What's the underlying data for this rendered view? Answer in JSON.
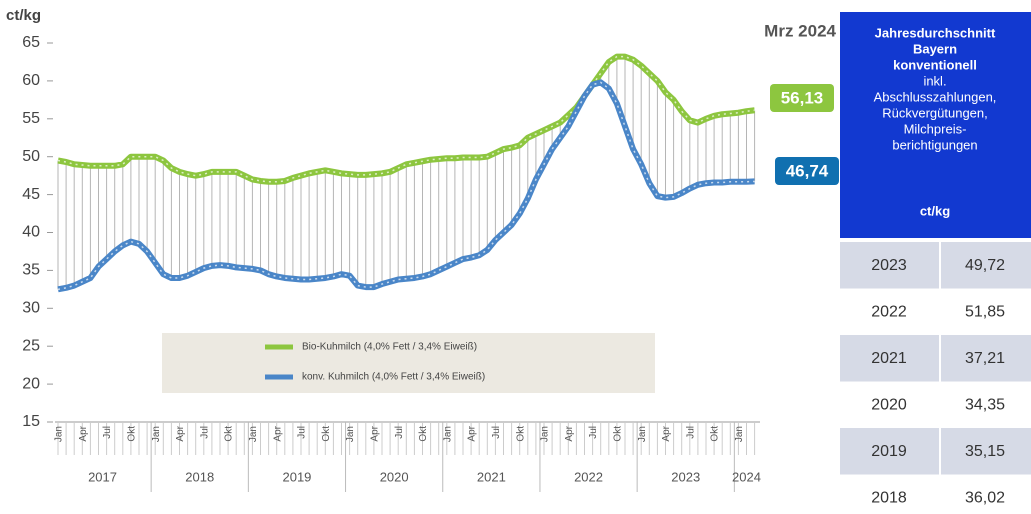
{
  "chart_data": {
    "type": "line",
    "y_axis_label": "ct/kg",
    "annotation": "Mrz 2024",
    "ylim": [
      15,
      65
    ],
    "yticks": [
      15,
      20,
      25,
      30,
      35,
      40,
      45,
      50,
      55,
      60,
      65
    ],
    "grid": false,
    "categories": [
      "Jan",
      null,
      null,
      "Apr",
      null,
      null,
      "Jul",
      null,
      null,
      "Okt",
      null,
      null,
      "Jan",
      null,
      null,
      "Apr",
      null,
      null,
      "Jul",
      null,
      null,
      "Okt",
      null,
      null,
      "Jan",
      null,
      null,
      "Apr",
      null,
      null,
      "Jul",
      null,
      null,
      "Okt",
      null,
      null,
      "Jan",
      null,
      null,
      "Apr",
      null,
      null,
      "Jul",
      null,
      null,
      "Okt",
      null,
      null,
      "Jan",
      null,
      null,
      "Apr",
      null,
      null,
      "Jul",
      null,
      null,
      "Okt",
      null,
      null,
      "Jan",
      null,
      null,
      "Apr",
      null,
      null,
      "Jul",
      null,
      null,
      "Okt",
      null,
      null,
      "Jan",
      null,
      null,
      "Apr",
      null,
      null,
      "Jul",
      null,
      null,
      "Okt",
      null,
      null,
      "Jan",
      null,
      null
    ],
    "years": [
      "2017",
      "2018",
      "2019",
      "2020",
      "2021",
      "2022",
      "2023",
      "2024"
    ],
    "legend_position": "bottom-center",
    "series": [
      {
        "name": "Bio-Kuhmilch (4,0% Fett / 3,4% Eiweiß)",
        "color": "#8dc63f",
        "values": [
          49.5,
          49.3,
          49,
          48.9,
          48.8,
          48.8,
          48.8,
          48.8,
          49,
          50,
          50,
          50,
          50,
          49.5,
          48.5,
          48,
          47.7,
          47.5,
          47.7,
          48,
          48,
          48,
          48,
          47.5,
          47,
          46.8,
          46.7,
          46.7,
          46.8,
          47.2,
          47.5,
          47.8,
          48,
          48.2,
          48,
          47.8,
          47.7,
          47.6,
          47.6,
          47.7,
          47.8,
          48,
          48.5,
          49,
          49.2,
          49.4,
          49.6,
          49.7,
          49.8,
          49.8,
          49.9,
          49.9,
          49.9,
          50,
          50.5,
          51,
          51.2,
          51.5,
          52.5,
          53,
          53.5,
          54,
          54.5,
          55.5,
          56.5,
          58,
          59.5,
          61,
          62.5,
          63.2,
          63.2,
          62.8,
          62,
          61,
          60,
          58.5,
          57.5,
          56,
          54.8,
          54.5,
          55,
          55.4,
          55.6,
          55.7,
          55.8,
          56,
          56.13
        ],
        "value_labels": [
          null,
          null,
          null,
          null,
          null,
          null,
          null,
          null,
          null,
          null,
          null,
          null,
          null,
          null,
          null,
          null,
          null,
          null,
          null,
          null,
          null,
          null,
          null,
          null,
          null,
          null,
          null,
          null,
          null,
          null,
          null,
          null,
          null,
          null,
          null,
          null,
          null,
          null,
          null,
          null,
          null,
          null,
          null,
          null,
          null,
          null,
          null,
          null,
          null,
          null,
          null,
          null,
          null,
          null,
          null,
          null,
          null,
          null,
          null,
          null,
          null,
          null,
          null,
          null,
          null,
          null,
          null,
          null,
          null,
          null,
          null,
          null,
          null,
          null,
          null,
          null,
          null,
          null,
          null,
          null,
          null,
          null,
          null,
          null,
          null,
          null,
          "56,13"
        ]
      },
      {
        "name": "konv. Kuhmilch (4,0% Fett / 3,4% Eiweiß)",
        "color": "#4a86c8",
        "values": [
          32.5,
          32.7,
          33,
          33.5,
          34,
          35.5,
          36.5,
          37.5,
          38.3,
          38.8,
          38.5,
          37.5,
          36,
          34.5,
          34,
          34,
          34.3,
          34.8,
          35.3,
          35.6,
          35.7,
          35.6,
          35.4,
          35.3,
          35.2,
          35,
          34.5,
          34.2,
          34,
          33.9,
          33.8,
          33.8,
          33.9,
          34,
          34.2,
          34.5,
          34.3,
          33,
          32.8,
          32.8,
          33.2,
          33.5,
          33.8,
          33.9,
          34,
          34.2,
          34.5,
          35,
          35.5,
          36,
          36.5,
          36.7,
          37,
          37.7,
          39,
          40,
          41,
          42.5,
          44.5,
          47,
          49,
          51,
          52.5,
          54,
          56,
          58,
          59.5,
          59.8,
          59,
          57,
          54,
          51,
          49,
          46.5,
          44.8,
          44.6,
          44.7,
          45.2,
          45.8,
          46.3,
          46.5,
          46.6,
          46.6,
          46.7,
          46.7,
          46.7,
          46.74
        ],
        "value_labels": [
          null,
          null,
          null,
          null,
          null,
          null,
          null,
          null,
          null,
          null,
          null,
          null,
          null,
          null,
          null,
          null,
          null,
          null,
          null,
          null,
          null,
          null,
          null,
          null,
          null,
          null,
          null,
          null,
          null,
          null,
          null,
          null,
          null,
          null,
          null,
          null,
          null,
          null,
          null,
          null,
          null,
          null,
          null,
          null,
          null,
          null,
          null,
          null,
          null,
          null,
          null,
          null,
          null,
          null,
          null,
          null,
          null,
          null,
          null,
          null,
          null,
          null,
          null,
          null,
          null,
          null,
          null,
          null,
          null,
          null,
          null,
          null,
          null,
          null,
          null,
          null,
          null,
          null,
          null,
          null,
          null,
          null,
          null,
          null,
          null,
          null,
          "46,74"
        ]
      }
    ]
  },
  "table": {
    "header": [
      "Jahresdurchschnitt",
      "Bayern",
      "konventionell"
    ],
    "subheader": [
      "inkl.",
      "Abschlusszahlungen,",
      "Rückvergütungen,",
      "Milchpreis-",
      "berichtigungen"
    ],
    "unit": "ct/kg",
    "rows": [
      [
        "2023",
        "49,72"
      ],
      [
        "2022",
        "51,85"
      ],
      [
        "2021",
        "37,21"
      ],
      [
        "2020",
        "34,35"
      ],
      [
        "2019",
        "35,15"
      ],
      [
        "2018",
        "36,02"
      ]
    ]
  }
}
